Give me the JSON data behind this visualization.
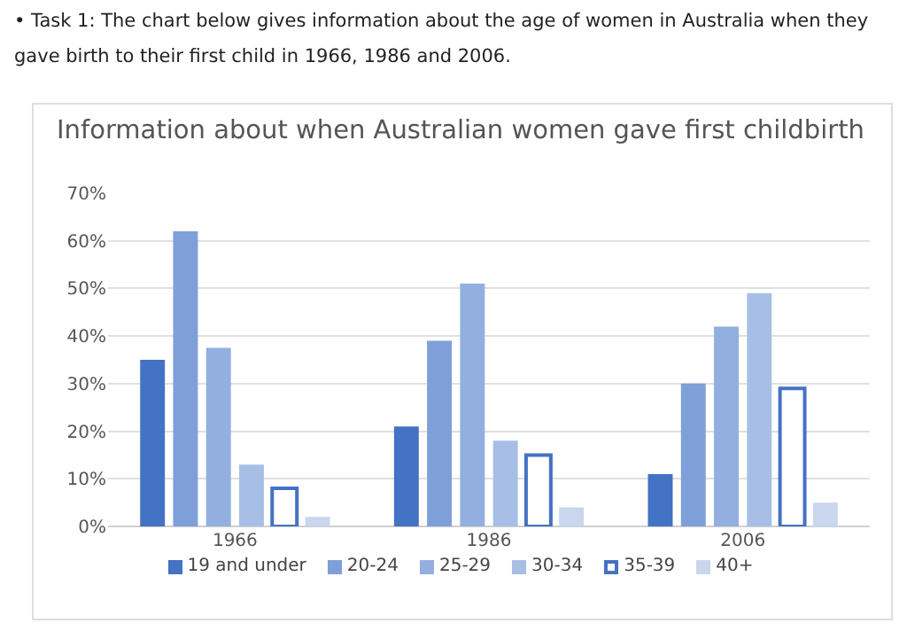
{
  "chart_data": {
    "type": "bar",
    "title": "Information about when Australian women gave first childbirth",
    "annotations": [
      "• Task 1: The chart below gives information about the age of women in Australia when they gave birth to their first child in 1966, 1986 and 2006."
    ],
    "categories": [
      "1966",
      "1986",
      "2006"
    ],
    "series": [
      {
        "name": "19 and under",
        "color": "#4472c4",
        "values": [
          35,
          21,
          11
        ]
      },
      {
        "name": "20-24",
        "color": "#7f9fd9",
        "values": [
          62,
          39,
          30
        ]
      },
      {
        "name": "25-29",
        "color": "#93afe0",
        "values": [
          37.5,
          51,
          42
        ]
      },
      {
        "name": "30-34",
        "color": "#a7bfe6",
        "values": [
          13,
          18,
          49
        ]
      },
      {
        "name": "35-39",
        "color": "#4472c4",
        "values": [
          8,
          15,
          29
        ]
      },
      {
        "name": "40+",
        "color": "#c9d6ee",
        "values": [
          2,
          4,
          5
        ]
      }
    ],
    "ylim": [
      0,
      70
    ],
    "yticks": [
      {
        "value": 0,
        "label": "0%"
      },
      {
        "value": 10,
        "label": "10%"
      },
      {
        "value": 20,
        "label": "20%"
      },
      {
        "value": 30,
        "label": "30%"
      },
      {
        "value": 40,
        "label": "40%"
      },
      {
        "value": 50,
        "label": "50%"
      },
      {
        "value": 60,
        "label": "60%"
      },
      {
        "value": 70,
        "label": "70%"
      }
    ],
    "grid": "y",
    "legend": "bottom"
  }
}
